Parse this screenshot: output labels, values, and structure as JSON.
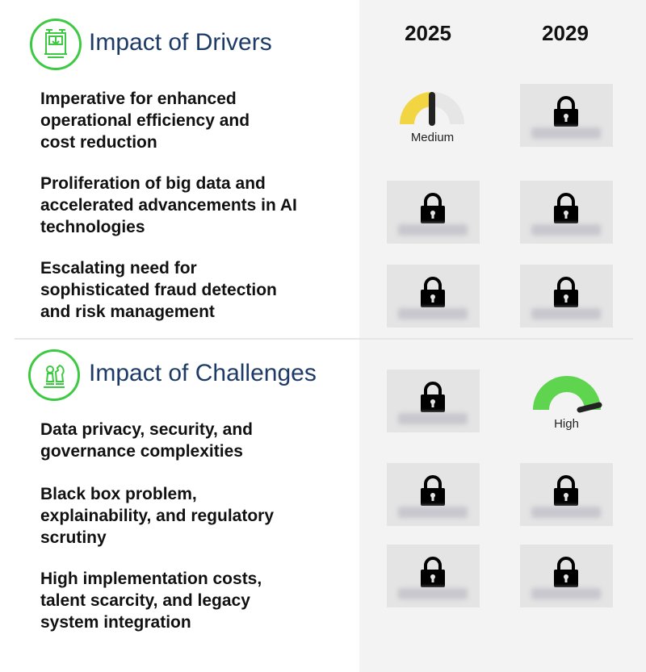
{
  "columns": [
    "2025",
    "2029"
  ],
  "colors": {
    "accent_green": "#3ec943",
    "title_navy": "#1d3b66",
    "medium_yellow": "#f2d543",
    "high_green": "#5fd44f"
  },
  "drivers": {
    "title": "Impact of Drivers",
    "icon": "machine-icon",
    "items": [
      {
        "label": "Imperative for enhanced\noperational efficiency and\ncost reduction",
        "impact_2025": "Medium",
        "impact_2029": "locked"
      },
      {
        "label": "Proliferation of big data and\naccelerated advancements in AI\ntechnologies",
        "impact_2025": "locked",
        "impact_2029": "locked"
      },
      {
        "label": "Escalating need for\nsophisticated fraud detection\nand risk management",
        "impact_2025": "locked",
        "impact_2029": "locked"
      }
    ]
  },
  "challenges": {
    "title": "Impact of Challenges",
    "icon": "chess-icon",
    "header_impact_2025": "locked",
    "header_impact_2029": "High",
    "items": [
      {
        "label": "Data privacy, security, and\ngovernance complexities",
        "impact_2025": "locked",
        "impact_2029": "locked"
      },
      {
        "label": "Black box problem,\nexplainability, and regulatory\nscrutiny",
        "impact_2025": "locked",
        "impact_2029": "locked"
      },
      {
        "label": "High implementation costs,\ntalent scarcity, and legacy\nsystem integration",
        "impact_2025": "locked",
        "impact_2029": "locked"
      }
    ]
  }
}
